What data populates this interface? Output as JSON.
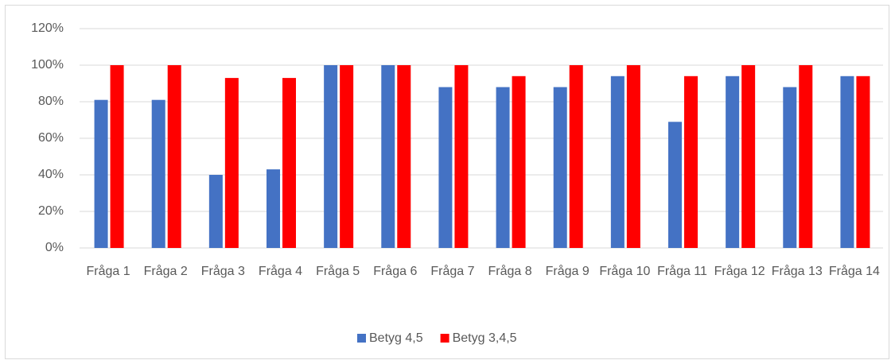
{
  "chart_data": {
    "type": "bar",
    "categories": [
      "Fråga 1",
      "Fråga 2",
      "Fråga 3",
      "Fråga 4",
      "Fråga 5",
      "Fråga 6",
      "Fråga 7",
      "Fråga 8",
      "Fråga 9",
      "Fråga 10",
      "Fråga 11",
      "Fråga 12",
      "Fråga 13",
      "Fråga 14"
    ],
    "series": [
      {
        "name": "Betyg 4,5",
        "color": "#4472c4",
        "values": [
          81,
          81,
          40,
          43,
          100,
          100,
          88,
          88,
          88,
          94,
          69,
          94,
          88,
          94
        ]
      },
      {
        "name": "Betyg 3,4,5",
        "color": "#ff0000",
        "values": [
          100,
          100,
          93,
          93,
          100,
          100,
          100,
          94,
          100,
          100,
          94,
          100,
          100,
          94
        ]
      }
    ],
    "ylim": [
      0,
      120
    ],
    "yticks": [
      {
        "value": 0,
        "label": "0%"
      },
      {
        "value": 20,
        "label": "20%"
      },
      {
        "value": 40,
        "label": "40%"
      },
      {
        "value": 60,
        "label": "60%"
      },
      {
        "value": 80,
        "label": "80%"
      },
      {
        "value": 100,
        "label": "100%"
      },
      {
        "value": 120,
        "label": "120%"
      }
    ],
    "grid": true,
    "legend": "bottom"
  }
}
